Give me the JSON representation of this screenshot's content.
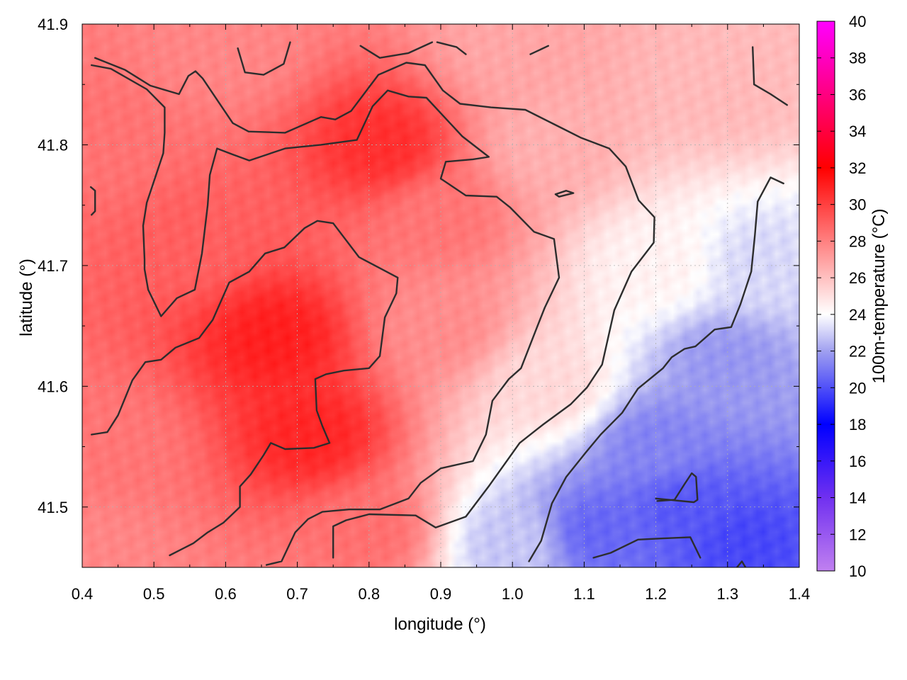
{
  "chart_data": {
    "type": "heatmap",
    "xlabel": "longitude (°)",
    "ylabel": "latitude (°)",
    "colorbar_label": "100m-temperature (°C)",
    "xlim": [
      0.4,
      1.4
    ],
    "ylim": [
      41.45,
      41.9
    ],
    "x_ticks": [
      "0.4",
      "0.5",
      "0.6",
      "0.7",
      "0.8",
      "0.9",
      "1.0",
      "1.1",
      "1.2",
      "1.3",
      "1.4"
    ],
    "y_ticks": [
      "41.5",
      "41.6",
      "41.7",
      "41.8",
      "41.9"
    ],
    "colorbar_range": [
      10,
      40
    ],
    "colorbar_ticks": [
      "10",
      "12",
      "14",
      "16",
      "18",
      "20",
      "22",
      "24",
      "26",
      "28",
      "30",
      "32",
      "34",
      "36",
      "38",
      "40"
    ],
    "colormap": [
      {
        "value": 10,
        "color": "#c080f0"
      },
      {
        "value": 14,
        "color": "#7030f0"
      },
      {
        "value": 18,
        "color": "#0000ff"
      },
      {
        "value": 22,
        "color": "#a0a0f0"
      },
      {
        "value": 24,
        "color": "#ffffff"
      },
      {
        "value": 26,
        "color": "#ffc0c0"
      },
      {
        "value": 32,
        "color": "#ff0000"
      },
      {
        "value": 36,
        "color": "#ff0080"
      },
      {
        "value": 40,
        "color": "#ff00ff"
      }
    ],
    "grid": true,
    "field_sources": [
      {
        "lon": 0.67,
        "lat": 41.64,
        "temp": 31.0
      },
      {
        "lon": 0.72,
        "lat": 41.56,
        "temp": 30.8
      },
      {
        "lon": 0.82,
        "lat": 41.8,
        "temp": 30.5
      },
      {
        "lon": 0.55,
        "lat": 41.72,
        "temp": 29.0
      },
      {
        "lon": 0.45,
        "lat": 41.55,
        "temp": 28.3
      },
      {
        "lon": 0.43,
        "lat": 41.8,
        "temp": 28.4
      },
      {
        "lon": 0.9,
        "lat": 41.65,
        "temp": 27.6
      },
      {
        "lon": 0.8,
        "lat": 41.48,
        "temp": 28.5
      },
      {
        "lon": 1.05,
        "lat": 41.8,
        "temp": 26.5
      },
      {
        "lon": 1.0,
        "lat": 41.88,
        "temp": 26.8
      },
      {
        "lon": 1.3,
        "lat": 41.85,
        "temp": 26.2
      },
      {
        "lon": 1.05,
        "lat": 41.6,
        "temp": 25.2
      },
      {
        "lon": 1.2,
        "lat": 41.7,
        "temp": 24.4
      },
      {
        "lon": 1.35,
        "lat": 41.7,
        "temp": 23.2
      },
      {
        "lon": 1.3,
        "lat": 41.62,
        "temp": 21.8
      },
      {
        "lon": 1.2,
        "lat": 41.55,
        "temp": 21.3
      },
      {
        "lon": 1.24,
        "lat": 41.5,
        "temp": 20.2
      },
      {
        "lon": 1.12,
        "lat": 41.48,
        "temp": 20.6
      },
      {
        "lon": 1.32,
        "lat": 41.47,
        "temp": 19.8
      },
      {
        "lon": 1.0,
        "lat": 41.47,
        "temp": 22.8
      },
      {
        "lon": 0.42,
        "lat": 41.46,
        "temp": 27.8
      },
      {
        "lon": 0.6,
        "lat": 41.88,
        "temp": 27.8
      },
      {
        "lon": 0.9,
        "lat": 41.74,
        "temp": 28.3
      }
    ],
    "contours": [
      [
        [
          0.418,
          41.872
        ],
        [
          0.46,
          41.862
        ],
        [
          0.495,
          41.849
        ],
        [
          0.535,
          41.842
        ],
        [
          0.548,
          41.857
        ],
        [
          0.558,
          41.861
        ],
        [
          0.568,
          41.855
        ],
        [
          0.61,
          41.818
        ],
        [
          0.632,
          41.811
        ],
        [
          0.683,
          41.81
        ],
        [
          0.733,
          41.823
        ],
        [
          0.753,
          41.821
        ],
        [
          0.775,
          41.828
        ],
        [
          0.813,
          41.858
        ],
        [
          0.852,
          41.868
        ],
        [
          0.878,
          41.866
        ],
        [
          0.903,
          41.845
        ],
        [
          0.927,
          41.834
        ],
        [
          0.97,
          41.831
        ],
        [
          1.018,
          41.829
        ],
        [
          1.075,
          41.812
        ],
        [
          1.095,
          41.806
        ],
        [
          1.135,
          41.797
        ],
        [
          1.158,
          41.782
        ],
        [
          1.176,
          41.754
        ],
        [
          1.198,
          41.74
        ],
        [
          1.197,
          41.719
        ],
        [
          1.166,
          41.695
        ],
        [
          1.142,
          41.663
        ],
        [
          1.125,
          41.618
        ],
        [
          1.104,
          41.599
        ],
        [
          1.081,
          41.585
        ],
        [
          1.042,
          41.568
        ],
        [
          1.01,
          41.553
        ],
        [
          0.968,
          41.518
        ],
        [
          0.935,
          41.492
        ],
        [
          0.893,
          41.483
        ],
        [
          0.865,
          41.493
        ],
        [
          0.8,
          41.494
        ],
        [
          0.768,
          41.489
        ],
        [
          0.75,
          41.484
        ],
        [
          0.75,
          41.458
        ]
      ],
      [
        [
          0.413,
          41.866
        ],
        [
          0.44,
          41.863
        ],
        [
          0.49,
          41.846
        ],
        [
          0.515,
          41.831
        ],
        [
          0.515,
          41.81
        ],
        [
          0.513,
          41.793
        ],
        [
          0.49,
          41.752
        ],
        [
          0.485,
          41.733
        ],
        [
          0.487,
          41.705
        ],
        [
          0.487,
          41.697
        ],
        [
          0.492,
          41.68
        ],
        [
          0.51,
          41.658
        ],
        [
          0.532,
          41.673
        ],
        [
          0.557,
          41.68
        ],
        [
          0.567,
          41.71
        ],
        [
          0.575,
          41.75
        ],
        [
          0.578,
          41.775
        ],
        [
          0.588,
          41.797
        ],
        [
          0.61,
          41.792
        ],
        [
          0.633,
          41.787
        ],
        [
          0.683,
          41.797
        ],
        [
          0.733,
          41.8
        ],
        [
          0.783,
          41.804
        ],
        [
          0.805,
          41.832
        ],
        [
          0.826,
          41.845
        ],
        [
          0.855,
          41.84
        ],
        [
          0.88,
          41.839
        ],
        [
          0.93,
          41.807
        ],
        [
          0.967,
          41.79
        ],
        [
          0.945,
          41.788
        ],
        [
          0.907,
          41.786
        ],
        [
          0.9,
          41.772
        ],
        [
          0.935,
          41.758
        ],
        [
          0.978,
          41.757
        ],
        [
          0.997,
          41.748
        ],
        [
          1.03,
          41.728
        ],
        [
          1.058,
          41.722
        ],
        [
          1.065,
          41.69
        ],
        [
          1.045,
          41.665
        ],
        [
          1.035,
          41.65
        ],
        [
          1.012,
          41.615
        ],
        [
          0.995,
          41.606
        ],
        [
          0.972,
          41.588
        ],
        [
          0.963,
          41.56
        ],
        [
          0.945,
          41.538
        ],
        [
          0.9,
          41.532
        ],
        [
          0.872,
          41.52
        ],
        [
          0.855,
          41.507
        ],
        [
          0.815,
          41.498
        ],
        [
          0.772,
          41.498
        ],
        [
          0.735,
          41.496
        ],
        [
          0.715,
          41.49
        ],
        [
          0.697,
          41.479
        ],
        [
          0.678,
          41.455
        ],
        [
          0.657,
          41.452
        ]
      ],
      [
        [
          0.413,
          41.56
        ],
        [
          0.435,
          41.562
        ],
        [
          0.45,
          41.576
        ],
        [
          0.47,
          41.605
        ],
        [
          0.488,
          41.62
        ],
        [
          0.51,
          41.622
        ],
        [
          0.53,
          41.632
        ],
        [
          0.563,
          41.64
        ],
        [
          0.582,
          41.655
        ],
        [
          0.605,
          41.686
        ],
        [
          0.633,
          41.695
        ],
        [
          0.655,
          41.71
        ],
        [
          0.682,
          41.715
        ],
        [
          0.71,
          41.731
        ],
        [
          0.728,
          41.737
        ],
        [
          0.75,
          41.735
        ],
        [
          0.786,
          41.707
        ],
        [
          0.84,
          41.69
        ],
        [
          0.838,
          41.677
        ],
        [
          0.822,
          41.657
        ],
        [
          0.815,
          41.625
        ],
        [
          0.8,
          41.615
        ],
        [
          0.765,
          41.613
        ],
        [
          0.74,
          41.61
        ],
        [
          0.725,
          41.606
        ],
        [
          0.727,
          41.58
        ],
        [
          0.735,
          41.567
        ],
        [
          0.745,
          41.553
        ],
        [
          0.723,
          41.549
        ],
        [
          0.683,
          41.548
        ],
        [
          0.663,
          41.553
        ],
        [
          0.653,
          41.543
        ],
        [
          0.635,
          41.527
        ],
        [
          0.62,
          41.517
        ],
        [
          0.62,
          41.5
        ],
        [
          0.597,
          41.487
        ],
        [
          0.575,
          41.479
        ],
        [
          0.555,
          41.47
        ],
        [
          0.522,
          41.46
        ]
      ],
      [
        [
          0.412,
          41.765
        ],
        [
          0.418,
          41.762
        ],
        [
          0.418,
          41.745
        ],
        [
          0.413,
          41.742
        ]
      ],
      [
        [
          0.617,
          41.88
        ],
        [
          0.627,
          41.86
        ],
        [
          0.653,
          41.858
        ],
        [
          0.681,
          41.867
        ],
        [
          0.69,
          41.885
        ]
      ],
      [
        [
          0.788,
          41.882
        ],
        [
          0.815,
          41.872
        ],
        [
          0.855,
          41.876
        ],
        [
          0.888,
          41.885
        ]
      ],
      [
        [
          0.895,
          41.885
        ],
        [
          0.922,
          41.881
        ],
        [
          0.935,
          41.875
        ]
      ],
      [
        [
          1.025,
          41.875
        ],
        [
          1.05,
          41.882
        ]
      ],
      [
        [
          1.335,
          41.881
        ],
        [
          1.337,
          41.85
        ],
        [
          1.36,
          41.842
        ],
        [
          1.383,
          41.833
        ]
      ],
      [
        [
          1.06,
          41.759
        ],
        [
          1.075,
          41.762
        ],
        [
          1.085,
          41.76
        ],
        [
          1.065,
          41.757
        ],
        [
          1.06,
          41.759
        ]
      ],
      [
        [
          1.023,
          41.455
        ],
        [
          1.04,
          41.472
        ],
        [
          1.055,
          41.503
        ],
        [
          1.075,
          41.525
        ],
        [
          1.102,
          41.545
        ],
        [
          1.123,
          41.56
        ],
        [
          1.153,
          41.578
        ],
        [
          1.175,
          41.598
        ],
        [
          1.21,
          41.615
        ],
        [
          1.222,
          41.624
        ],
        [
          1.24,
          41.631
        ],
        [
          1.255,
          41.633
        ],
        [
          1.282,
          41.647
        ],
        [
          1.305,
          41.649
        ],
        [
          1.318,
          41.668
        ],
        [
          1.333,
          41.695
        ],
        [
          1.338,
          41.725
        ],
        [
          1.342,
          41.753
        ],
        [
          1.36,
          41.773
        ],
        [
          1.378,
          41.768
        ]
      ],
      [
        [
          1.202,
          41.505
        ],
        [
          1.226,
          41.506
        ],
        [
          1.24,
          41.519
        ],
        [
          1.25,
          41.528
        ],
        [
          1.256,
          41.525
        ],
        [
          1.258,
          41.506
        ],
        [
          1.253,
          41.504
        ],
        [
          1.2,
          41.507
        ]
      ],
      [
        [
          1.113,
          41.458
        ],
        [
          1.137,
          41.462
        ],
        [
          1.175,
          41.473
        ],
        [
          1.21,
          41.474
        ],
        [
          1.248,
          41.475
        ],
        [
          1.262,
          41.458
        ]
      ],
      [
        [
          1.313,
          41.45
        ],
        [
          1.32,
          41.455
        ],
        [
          1.325,
          41.45
        ]
      ]
    ]
  }
}
